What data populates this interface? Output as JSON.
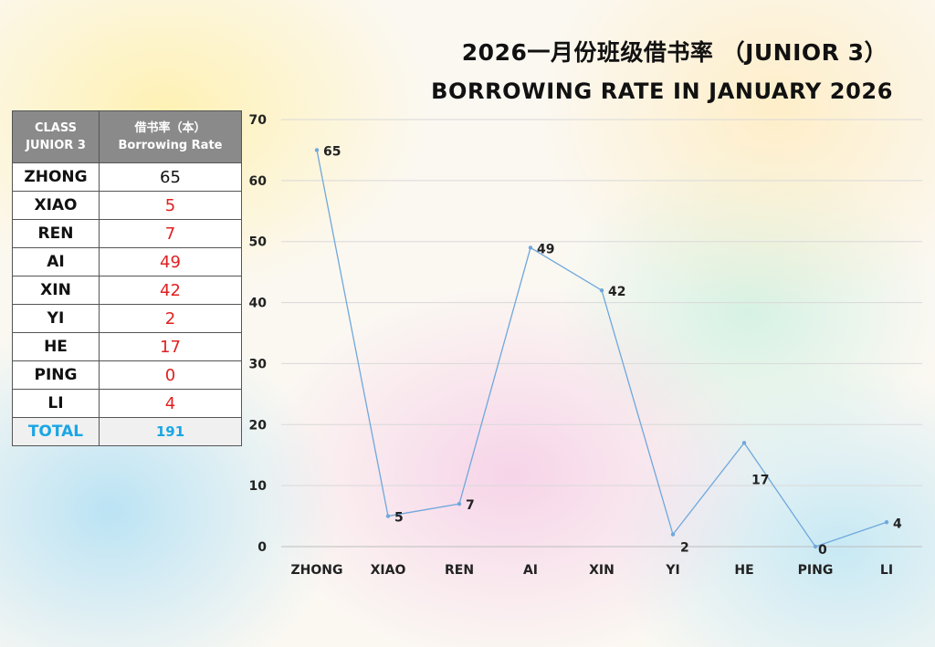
{
  "title_zh": "2026一月份班级借书率 （JUNIOR 3）",
  "title_en": "BORROWING RATE IN JANUARY 2026",
  "table": {
    "header_col1_line1": "CLASS",
    "header_col1_line2": "JUNIOR 3",
    "header_col2_line1": "借书率（本）",
    "header_col2_line2": "Borrowing Rate",
    "rows": [
      {
        "name": "ZHONG",
        "value": "65",
        "color": "#111111"
      },
      {
        "name": "XIAO",
        "value": "5",
        "color": "#e02020"
      },
      {
        "name": "REN",
        "value": "7",
        "color": "#e02020"
      },
      {
        "name": "AI",
        "value": "49",
        "color": "#e02020"
      },
      {
        "name": "XIN",
        "value": "42",
        "color": "#e02020"
      },
      {
        "name": "YI",
        "value": "2",
        "color": "#e02020"
      },
      {
        "name": "HE",
        "value": "17",
        "color": "#e02020"
      },
      {
        "name": "PING",
        "value": "0",
        "color": "#e02020"
      },
      {
        "name": "LI",
        "value": "4",
        "color": "#e02020"
      }
    ],
    "total_label": "TOTAL",
    "total_value": "191",
    "total_color": "#1aa6e4"
  },
  "chart_data": {
    "type": "line",
    "categories": [
      "ZHONG",
      "XIAO",
      "REN",
      "AI",
      "XIN",
      "YI",
      "HE",
      "PING",
      "LI"
    ],
    "series": [
      {
        "values": [
          65,
          5,
          7,
          49,
          42,
          2,
          17,
          0,
          4
        ],
        "color": "#6fa8dc"
      }
    ],
    "ylim": [
      0,
      70
    ],
    "yticks": [
      0,
      10,
      20,
      30,
      40,
      50,
      60,
      70
    ],
    "grid": true,
    "legend": "none",
    "data_labels": true
  }
}
